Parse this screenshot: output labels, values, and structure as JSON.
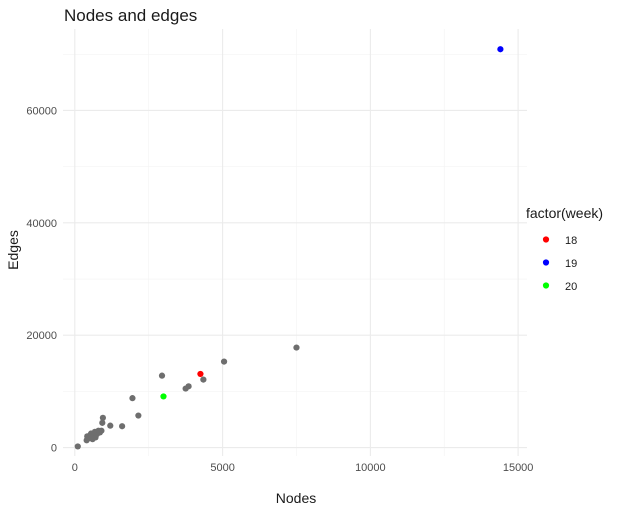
{
  "chart_data": {
    "type": "scatter",
    "title": "Nodes and edges",
    "xlabel": "Nodes",
    "ylabel": "Edges",
    "xlim": [
      -400,
      15300
    ],
    "ylim": [
      -1500,
      74500
    ],
    "x_ticks": [
      0,
      5000,
      10000,
      15000
    ],
    "x_tick_labels": [
      "0",
      "5000",
      "10000",
      "15000"
    ],
    "y_ticks": [
      0,
      20000,
      40000,
      60000
    ],
    "y_tick_labels": [
      "0",
      "20000",
      "40000",
      "60000"
    ],
    "grid": true,
    "legend": {
      "title": "factor(week)",
      "placement": "right",
      "entries": [
        {
          "label": "18",
          "color": "#ff0000"
        },
        {
          "label": "19",
          "color": "#0000ff"
        },
        {
          "label": "20",
          "color": "#00ff00"
        }
      ]
    },
    "default_color": "#6e6e6e",
    "points": [
      {
        "x": 100,
        "y": 200
      },
      {
        "x": 400,
        "y": 1300
      },
      {
        "x": 420,
        "y": 2000
      },
      {
        "x": 450,
        "y": 1600
      },
      {
        "x": 480,
        "y": 1900
      },
      {
        "x": 520,
        "y": 2200
      },
      {
        "x": 550,
        "y": 2500
      },
      {
        "x": 600,
        "y": 1500
      },
      {
        "x": 620,
        "y": 2000
      },
      {
        "x": 680,
        "y": 2800
      },
      {
        "x": 700,
        "y": 1800
      },
      {
        "x": 750,
        "y": 2400
      },
      {
        "x": 800,
        "y": 3000
      },
      {
        "x": 850,
        "y": 2700
      },
      {
        "x": 900,
        "y": 3000
      },
      {
        "x": 930,
        "y": 4400
      },
      {
        "x": 950,
        "y": 5300
      },
      {
        "x": 1200,
        "y": 3900
      },
      {
        "x": 1600,
        "y": 3800
      },
      {
        "x": 1950,
        "y": 8800
      },
      {
        "x": 2150,
        "y": 5700
      },
      {
        "x": 2950,
        "y": 12800
      },
      {
        "x": 3750,
        "y": 10500
      },
      {
        "x": 3850,
        "y": 10900
      },
      {
        "x": 4350,
        "y": 12100
      },
      {
        "x": 5050,
        "y": 15300
      },
      {
        "x": 7500,
        "y": 17800
      },
      {
        "x": 4250,
        "y": 13100,
        "week": "18"
      },
      {
        "x": 14400,
        "y": 70900,
        "week": "19"
      },
      {
        "x": 3000,
        "y": 9100,
        "week": "20"
      }
    ]
  }
}
